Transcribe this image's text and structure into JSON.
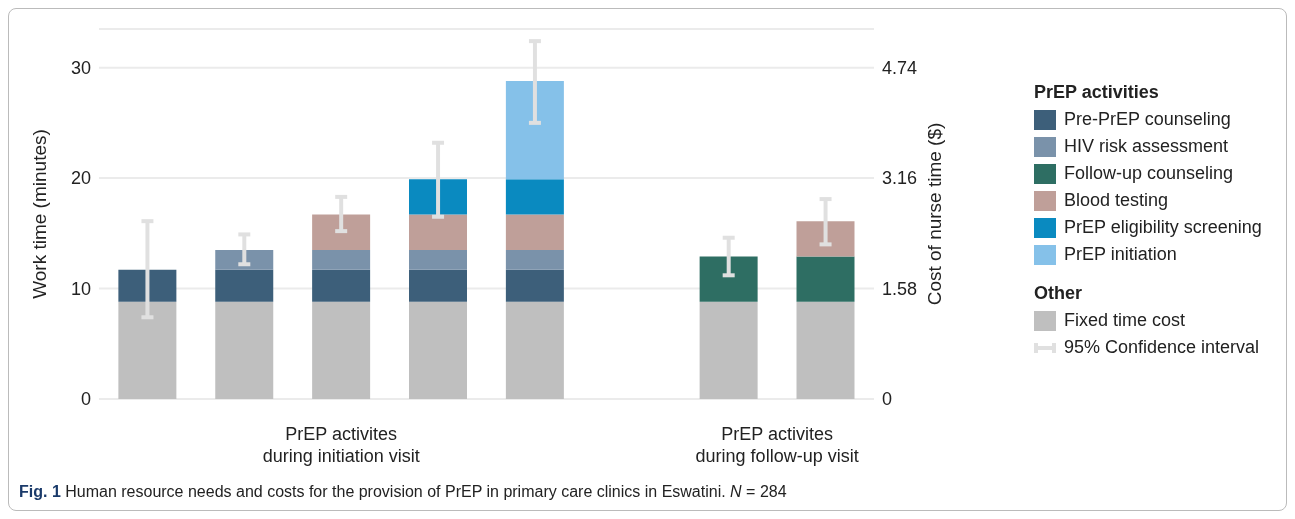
{
  "chart_data": {
    "type": "bar",
    "stacked": true,
    "categories": [
      null,
      null,
      null,
      null,
      null,
      null,
      null,
      null
    ],
    "series": [
      {
        "name": "Fixed time cost",
        "color": "#bfbfbf",
        "values": [
          8.8,
          8.8,
          8.8,
          8.8,
          8.8,
          null,
          8.8,
          8.8
        ]
      },
      {
        "name": "Pre-PrEP counseling",
        "color": "#3d5f7a",
        "values": [
          2.9,
          2.9,
          2.9,
          2.9,
          2.9,
          null,
          null,
          null
        ],
        "errors": [
          [
            7.4,
            16.1
          ],
          null,
          null,
          null,
          null,
          null,
          null,
          null
        ]
      },
      {
        "name": "HIV risk assessment",
        "color": "#7a92aa",
        "values": [
          null,
          1.8,
          1.8,
          1.8,
          1.8,
          null,
          null,
          null
        ],
        "errors": [
          null,
          [
            12.2,
            14.9
          ],
          null,
          null,
          null,
          null,
          null,
          null
        ]
      },
      {
        "name": "Follow-up counseling",
        "color": "#2e6e63",
        "values": [
          null,
          null,
          null,
          null,
          null,
          null,
          4.1,
          4.1
        ],
        "errors": [
          null,
          null,
          null,
          null,
          null,
          null,
          [
            11.2,
            14.6
          ],
          null
        ]
      },
      {
        "name": "Blood testing",
        "color": "#bf9f99",
        "values": [
          null,
          null,
          3.2,
          3.2,
          3.2,
          null,
          null,
          3.2
        ],
        "errors": [
          null,
          null,
          [
            15.2,
            18.3
          ],
          null,
          null,
          null,
          null,
          [
            14.0,
            18.1
          ]
        ]
      },
      {
        "name": "PrEP eligibility screening",
        "color": "#0a8ac0",
        "values": [
          null,
          null,
          null,
          3.2,
          3.2,
          null,
          null,
          null
        ],
        "errors": [
          null,
          null,
          null,
          [
            16.5,
            23.2
          ],
          null,
          null,
          null,
          null
        ]
      },
      {
        "name": "PrEP initiation",
        "color": "#85c1e9",
        "values": [
          null,
          null,
          null,
          null,
          8.9,
          null,
          null,
          null
        ],
        "errors": [
          null,
          null,
          null,
          null,
          [
            25.0,
            32.4
          ],
          null,
          null,
          null
        ]
      }
    ],
    "ylim": [
      0,
      33.5
    ],
    "yticks": [
      0,
      10,
      20,
      30
    ],
    "y2lim": [
      0,
      5.293
    ],
    "y2ticks": [
      0,
      1.58,
      3.16,
      4.74
    ],
    "ylabel": "Work time (minutes)",
    "y2label": "Cost of nurse time ($)",
    "grid": "y",
    "legend": "right",
    "legend_title": "PrEP activities",
    "annotations": [
      "PrEP activites\nduring initiation visit",
      "PrEP activites\nduring follow-up visit",
      "Other",
      "95% Confidence interval",
      "Fig. 1 Human resource needs and costs for the provision of PrEP in primary care clinics in Eswatini. N = 284"
    ]
  }
}
